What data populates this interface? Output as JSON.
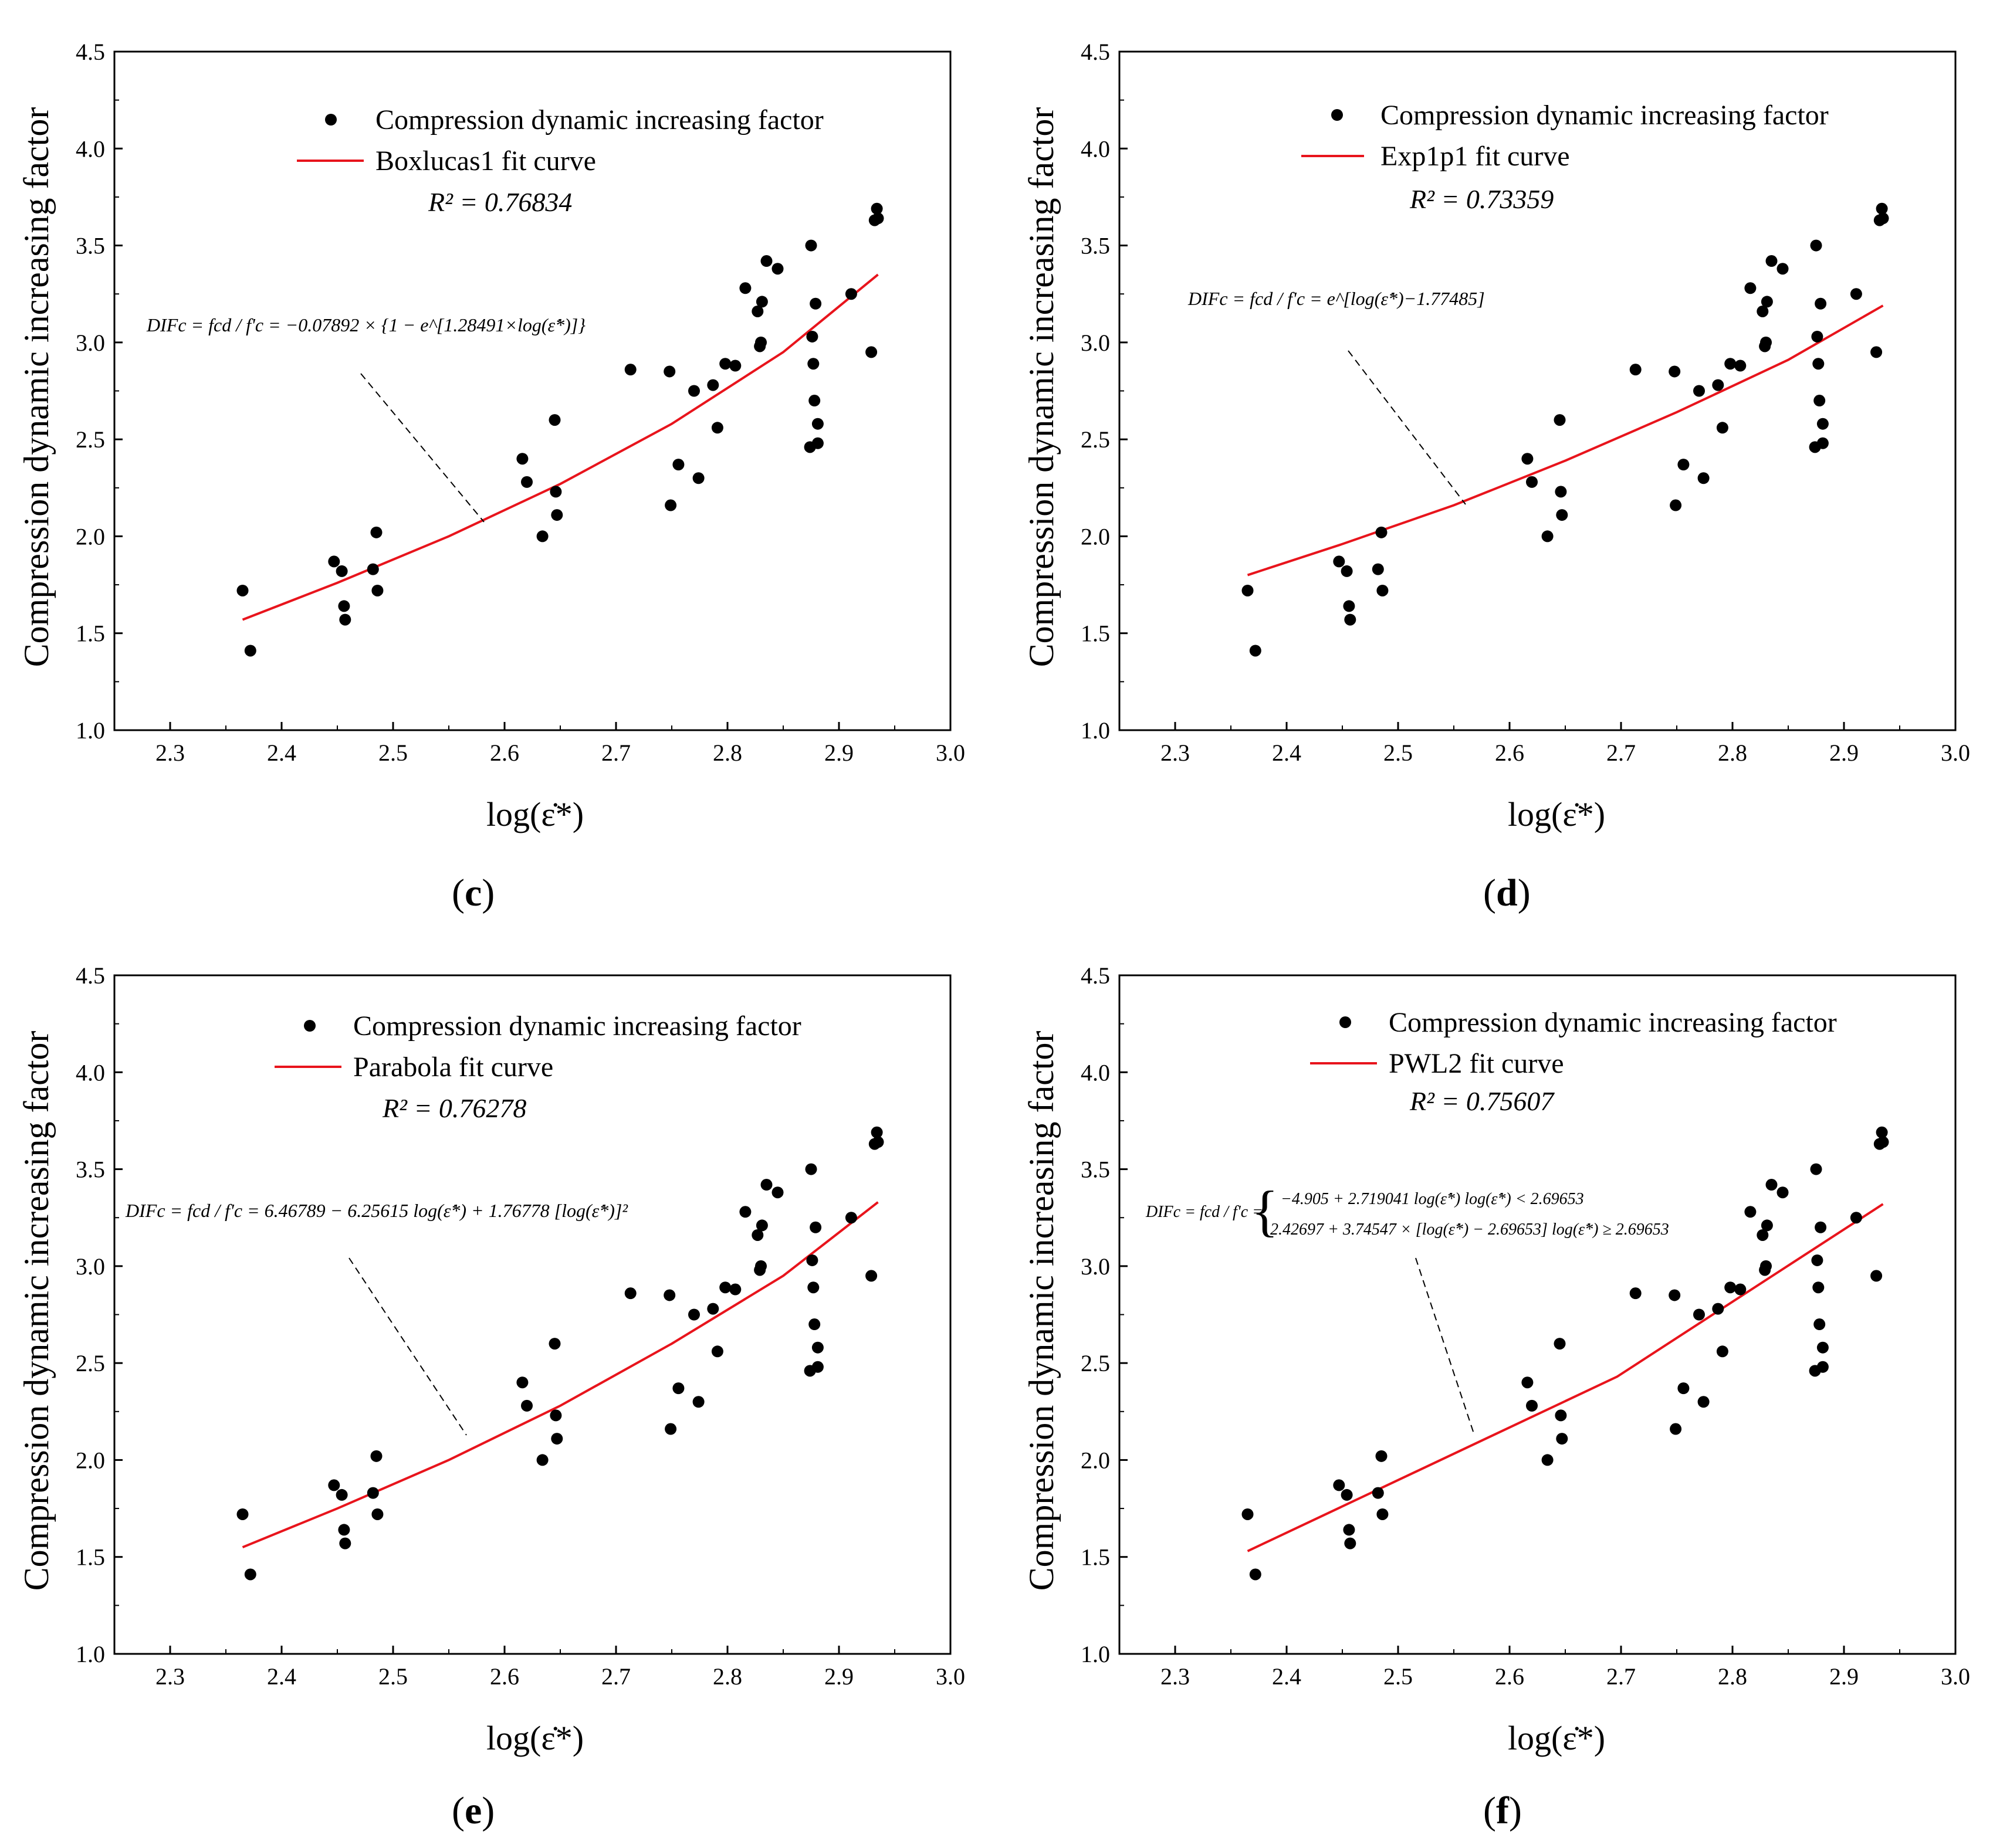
{
  "chart_data": [
    {
      "panel": "c",
      "type": "scatter",
      "title": "",
      "xlabel": "log(ε̇*)",
      "ylabel": "Compression dynamic increasing factor",
      "xlim": [
        2.25,
        3.0
      ],
      "ylim": [
        1.0,
        4.5
      ],
      "xticks": [
        "2.3",
        "2.4",
        "2.5",
        "2.6",
        "2.7",
        "2.8",
        "2.9",
        "3.0"
      ],
      "yticks": [
        "1.0",
        "1.5",
        "2.0",
        "2.5",
        "3.0",
        "3.5",
        "4.0",
        "4.5"
      ],
      "legend_points": "Compression dynamic increasing factor",
      "legend_line": "Boxlucas1 fit curve",
      "r2_text": "R² = 0.76834",
      "equation": "DIFc = fcd / f'c = −0.07892 × {1 − e^[1.28491×log(ε̇*)]}",
      "fit": {
        "x": [
          2.365,
          2.45,
          2.55,
          2.65,
          2.75,
          2.85,
          2.935
        ],
        "y": [
          1.57,
          1.76,
          2.0,
          2.27,
          2.58,
          2.95,
          3.35
        ]
      },
      "points": {
        "x": [
          2.365,
          2.372,
          2.447,
          2.454,
          2.456,
          2.457,
          2.482,
          2.485,
          2.486,
          2.616,
          2.62,
          2.634,
          2.645,
          2.646,
          2.647,
          2.713,
          2.748,
          2.749,
          2.756,
          2.77,
          2.774,
          2.787,
          2.791,
          2.798,
          2.807,
          2.816,
          2.827,
          2.829,
          2.83,
          2.831,
          2.835,
          2.845,
          2.874,
          2.875,
          2.876,
          2.877,
          2.878,
          2.879,
          2.881,
          2.911,
          2.929,
          2.932,
          2.934,
          2.935
        ],
        "y": [
          1.72,
          1.41,
          1.87,
          1.82,
          1.64,
          1.57,
          1.83,
          2.02,
          1.72,
          2.4,
          2.28,
          2.0,
          2.6,
          2.23,
          2.11,
          2.86,
          2.85,
          2.16,
          2.37,
          2.75,
          2.3,
          2.78,
          2.56,
          2.89,
          2.88,
          3.28,
          3.16,
          2.98,
          3.0,
          3.21,
          3.42,
          3.38,
          2.46,
          3.5,
          3.03,
          2.89,
          2.7,
          3.2,
          2.48,
          3.25,
          2.95,
          3.63,
          3.69,
          3.64
        ],
        "extra": [
          2.881,
          2.58
        ]
      }
    },
    {
      "panel": "d",
      "type": "scatter",
      "title": "",
      "xlabel": "log(ε̇*)",
      "ylabel": "Compression dynamic increasing factor",
      "xlim": [
        2.25,
        3.0
      ],
      "ylim": [
        1.0,
        4.5
      ],
      "xticks": [
        "2.3",
        "2.4",
        "2.5",
        "2.6",
        "2.7",
        "2.8",
        "2.9",
        "3.0"
      ],
      "yticks": [
        "1.0",
        "1.5",
        "2.0",
        "2.5",
        "3.0",
        "3.5",
        "4.0",
        "4.5"
      ],
      "legend_points": "Compression dynamic increasing factor",
      "legend_line": "Exp1p1 fit curve",
      "r2_text": "R² = 0.73359",
      "equation": "DIFc = fcd / f'c = e^[log(ε̇*)−1.77485]",
      "fit": {
        "x": [
          2.365,
          2.45,
          2.55,
          2.65,
          2.75,
          2.85,
          2.935
        ],
        "y": [
          1.8,
          1.96,
          2.16,
          2.39,
          2.64,
          2.91,
          3.19
        ]
      },
      "points": {
        "x": [
          2.365,
          2.372,
          2.447,
          2.454,
          2.456,
          2.457,
          2.482,
          2.485,
          2.486,
          2.616,
          2.62,
          2.634,
          2.645,
          2.646,
          2.647,
          2.713,
          2.748,
          2.749,
          2.756,
          2.77,
          2.774,
          2.787,
          2.791,
          2.798,
          2.807,
          2.816,
          2.827,
          2.829,
          2.83,
          2.831,
          2.835,
          2.845,
          2.874,
          2.875,
          2.876,
          2.877,
          2.878,
          2.879,
          2.881,
          2.911,
          2.929,
          2.932,
          2.934,
          2.935
        ],
        "y": [
          1.72,
          1.41,
          1.87,
          1.82,
          1.64,
          1.57,
          1.83,
          2.02,
          1.72,
          2.4,
          2.28,
          2.0,
          2.6,
          2.23,
          2.11,
          2.86,
          2.85,
          2.16,
          2.37,
          2.75,
          2.3,
          2.78,
          2.56,
          2.89,
          2.88,
          3.28,
          3.16,
          2.98,
          3.0,
          3.21,
          3.42,
          3.38,
          2.46,
          3.5,
          3.03,
          2.89,
          2.7,
          3.2,
          2.48,
          3.25,
          2.95,
          3.63,
          3.69,
          3.64
        ],
        "extra": [
          2.881,
          2.58
        ]
      }
    },
    {
      "panel": "e",
      "type": "scatter",
      "title": "",
      "xlabel": "log(ε̇*)",
      "ylabel": "Compression dynamic increasing factor",
      "xlim": [
        2.25,
        3.0
      ],
      "ylim": [
        1.0,
        4.5
      ],
      "xticks": [
        "2.3",
        "2.4",
        "2.5",
        "2.6",
        "2.7",
        "2.8",
        "2.9",
        "3.0"
      ],
      "yticks": [
        "1.0",
        "1.5",
        "2.0",
        "2.5",
        "3.0",
        "3.5",
        "4.0",
        "4.5"
      ],
      "legend_points": "Compression dynamic increasing factor",
      "legend_line": "Parabola fit curve",
      "r2_text": "R² = 0.76278",
      "equation": "DIFc = fcd / f'c = 6.46789 − 6.25615 log(ε̇*) + 1.76778 [log(ε̇*)]²",
      "fit": {
        "x": [
          2.365,
          2.45,
          2.55,
          2.65,
          2.75,
          2.85,
          2.935
        ],
        "y": [
          1.55,
          1.75,
          2.0,
          2.28,
          2.6,
          2.95,
          3.33
        ]
      },
      "points": {
        "x": [
          2.365,
          2.372,
          2.447,
          2.454,
          2.456,
          2.457,
          2.482,
          2.485,
          2.486,
          2.616,
          2.62,
          2.634,
          2.645,
          2.646,
          2.647,
          2.713,
          2.748,
          2.749,
          2.756,
          2.77,
          2.774,
          2.787,
          2.791,
          2.798,
          2.807,
          2.816,
          2.827,
          2.829,
          2.83,
          2.831,
          2.835,
          2.845,
          2.874,
          2.875,
          2.876,
          2.877,
          2.878,
          2.879,
          2.881,
          2.911,
          2.929,
          2.932,
          2.934,
          2.935
        ],
        "y": [
          1.72,
          1.41,
          1.87,
          1.82,
          1.64,
          1.57,
          1.83,
          2.02,
          1.72,
          2.4,
          2.28,
          2.0,
          2.6,
          2.23,
          2.11,
          2.86,
          2.85,
          2.16,
          2.37,
          2.75,
          2.3,
          2.78,
          2.56,
          2.89,
          2.88,
          3.28,
          3.16,
          2.98,
          3.0,
          3.21,
          3.42,
          3.38,
          2.46,
          3.5,
          3.03,
          2.89,
          2.7,
          3.2,
          2.48,
          3.25,
          2.95,
          3.63,
          3.69,
          3.64
        ],
        "extra": [
          2.881,
          2.58
        ]
      }
    },
    {
      "panel": "f",
      "type": "scatter",
      "title": "",
      "xlabel": "log(ε̇*)",
      "ylabel": "Compression dynamic increasing factor",
      "xlim": [
        2.25,
        3.0
      ],
      "ylim": [
        1.0,
        4.5
      ],
      "xticks": [
        "2.3",
        "2.4",
        "2.5",
        "2.6",
        "2.7",
        "2.8",
        "2.9",
        "3.0"
      ],
      "yticks": [
        "1.0",
        "1.5",
        "2.0",
        "2.5",
        "3.0",
        "3.5",
        "4.0",
        "4.5"
      ],
      "legend_points": "Compression dynamic increasing factor",
      "legend_line": "PWL2 fit curve",
      "r2_text": "R² = 0.75607",
      "equation_line1": "−4.905 + 2.719041 log(ε̇*)      log(ε̇*) < 2.69653",
      "equation_line2": "2.42697 + 3.74547 × [log(ε̇*) − 2.69653]   log(ε̇*) ≥ 2.69653",
      "equation_lhs": "DIFc = fcd / f'c =",
      "fit": {
        "x": [
          2.365,
          2.69653,
          2.935
        ],
        "y": [
          1.53,
          2.43,
          3.32
        ]
      },
      "points": {
        "x": [
          2.365,
          2.372,
          2.447,
          2.454,
          2.456,
          2.457,
          2.482,
          2.485,
          2.486,
          2.616,
          2.62,
          2.634,
          2.645,
          2.646,
          2.647,
          2.713,
          2.748,
          2.749,
          2.756,
          2.77,
          2.774,
          2.787,
          2.791,
          2.798,
          2.807,
          2.816,
          2.827,
          2.829,
          2.83,
          2.831,
          2.835,
          2.845,
          2.874,
          2.875,
          2.876,
          2.877,
          2.878,
          2.879,
          2.881,
          2.911,
          2.929,
          2.932,
          2.934,
          2.935
        ],
        "y": [
          1.72,
          1.41,
          1.87,
          1.82,
          1.64,
          1.57,
          1.83,
          2.02,
          1.72,
          2.4,
          2.28,
          2.0,
          2.6,
          2.23,
          2.11,
          2.86,
          2.85,
          2.16,
          2.37,
          2.75,
          2.3,
          2.78,
          2.56,
          2.89,
          2.88,
          3.28,
          3.16,
          2.98,
          3.0,
          3.21,
          3.42,
          3.38,
          2.46,
          3.5,
          3.03,
          2.89,
          2.7,
          3.2,
          2.48,
          3.25,
          2.95,
          3.63,
          3.69,
          3.64
        ],
        "extra": [
          2.881,
          2.58
        ]
      }
    }
  ],
  "captions": {
    "c": {
      "open": "(",
      "letter": "c",
      "close": ")"
    },
    "d": {
      "open": "(",
      "letter": "d",
      "close": ")"
    },
    "e": {
      "open": "(",
      "letter": "e",
      "close": ")"
    },
    "f": {
      "open": "(",
      "letter": "f",
      "close": ")"
    }
  },
  "colors": {
    "fit_line": "#e8141c",
    "points": "#000000",
    "axes": "#000000",
    "leader": "#000000"
  }
}
